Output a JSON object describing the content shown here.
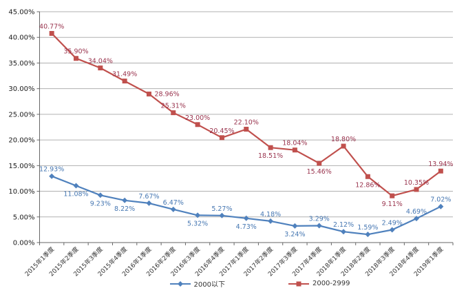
{
  "chart_data": {
    "type": "line",
    "title": "",
    "xlabel": "",
    "ylabel": "",
    "grid": true,
    "legend_position": "bottom",
    "ylim": [
      0,
      45
    ],
    "ytick_step": 5,
    "ytick_labels": [
      "0.00%",
      "5.00%",
      "10.00%",
      "15.00%",
      "20.00%",
      "25.00%",
      "30.00%",
      "35.00%",
      "40.00%",
      "45.00%"
    ],
    "categories": [
      "2015年1季度",
      "2015年2季度",
      "2015年3季度",
      "2015年4季度",
      "2016年1季度",
      "2016年2季度",
      "2016年3季度",
      "2016年4季度",
      "2017年1季度",
      "2017年2季度",
      "2017年3季度",
      "2017年4季度",
      "2018年1季度",
      "2018年2季度",
      "2018年3季度",
      "2018年4季度",
      "2019年1季度"
    ],
    "series": [
      {
        "name": "2000以下",
        "marker": "diamond",
        "color": "#4F81BD",
        "label_color": "#4677B2",
        "values": [
          12.93,
          11.08,
          9.23,
          8.22,
          7.67,
          6.47,
          5.32,
          5.27,
          4.73,
          4.18,
          3.24,
          3.29,
          2.12,
          1.59,
          2.49,
          4.69,
          7.02
        ],
        "labels": [
          "12.93%",
          "11.08%",
          "9.23%",
          "8.22%",
          "7.67%",
          "6.47%",
          "5.32%",
          "5.27%",
          "4.73%",
          "4.18%",
          "3.24%",
          "3.29%",
          "2.12%",
          "1.59%",
          "2.49%",
          "4.69%",
          "7.02%"
        ],
        "label_pos": [
          "above",
          "below",
          "below",
          "below",
          "above",
          "above",
          "below",
          "above",
          "below",
          "above",
          "below",
          "above",
          "above",
          "above",
          "above",
          "above",
          "above"
        ]
      },
      {
        "name": "2000-2999",
        "marker": "square",
        "color": "#C0504D",
        "label_color": "#99334D",
        "values": [
          40.77,
          35.9,
          34.04,
          31.49,
          28.96,
          25.31,
          23.0,
          20.45,
          22.1,
          18.51,
          18.04,
          15.46,
          18.8,
          12.86,
          9.11,
          10.35,
          13.94
        ],
        "labels": [
          "40.77%",
          "35.90%",
          "34.04%",
          "31.49%",
          "28.96%",
          "25.31%",
          "23.00%",
          "20.45%",
          "22.10%",
          "18.51%",
          "18.04%",
          "15.46%",
          "18.80%",
          "12.86%",
          "9.11%",
          "10.35%",
          "13.94%"
        ],
        "label_pos": [
          "above",
          "above",
          "above",
          "above",
          "right",
          "above",
          "above",
          "above",
          "above",
          "below",
          "above",
          "below",
          "above",
          "below",
          "below",
          "above",
          "above"
        ]
      }
    ],
    "axis_colors": {
      "axis_line": "#666666",
      "gridline": "#b0b0b0",
      "tick_text": "#1a1a1a",
      "category_text": "#333333"
    }
  }
}
